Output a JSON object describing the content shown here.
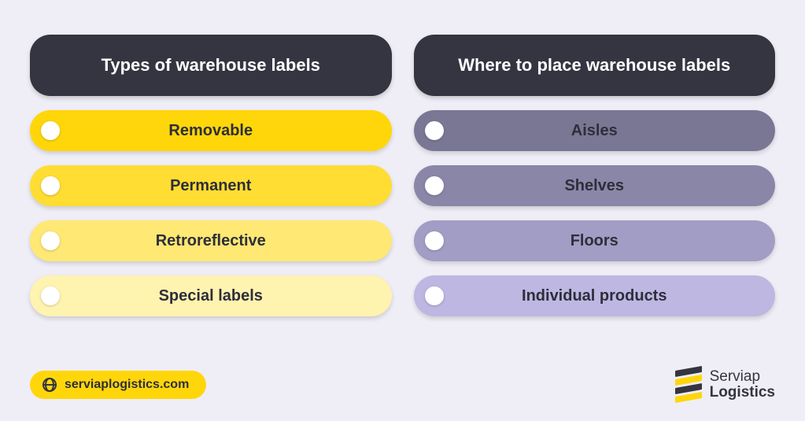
{
  "background_color": "#efeef6",
  "left": {
    "header": {
      "label": "Types of warehouse labels",
      "bg": "#343541",
      "fg": "#ffffff"
    },
    "items": [
      {
        "label": "Removable",
        "bg": "#ffd60a",
        "fg": "#2e2e3a"
      },
      {
        "label": "Permanent",
        "bg": "#ffdd33",
        "fg": "#2e2e3a"
      },
      {
        "label": "Retroreflective",
        "bg": "#ffe873",
        "fg": "#2e2e3a"
      },
      {
        "label": "Special labels",
        "bg": "#fff3b0",
        "fg": "#2e2e3a"
      }
    ]
  },
  "right": {
    "header": {
      "label": "Where to place warehouse labels",
      "bg": "#343541",
      "fg": "#ffffff"
    },
    "items": [
      {
        "label": "Aisles",
        "bg": "#7a7795",
        "fg": "#2e2e3a"
      },
      {
        "label": "Shelves",
        "bg": "#8a86a8",
        "fg": "#2e2e3a"
      },
      {
        "label": "Floors",
        "bg": "#a29dc4",
        "fg": "#2e2e3a"
      },
      {
        "label": "Individual products",
        "bg": "#bdb7e2",
        "fg": "#2e2e3a"
      }
    ]
  },
  "footer": {
    "url_label": "serviaplogistics.com",
    "url_bg": "#ffd60a",
    "url_fg": "#2e2e3a",
    "logo_line1": "Serviap",
    "logo_line2": "Logistics",
    "logo_layer_colors": [
      "#343541",
      "#ffd60a",
      "#343541",
      "#ffd60a"
    ]
  }
}
